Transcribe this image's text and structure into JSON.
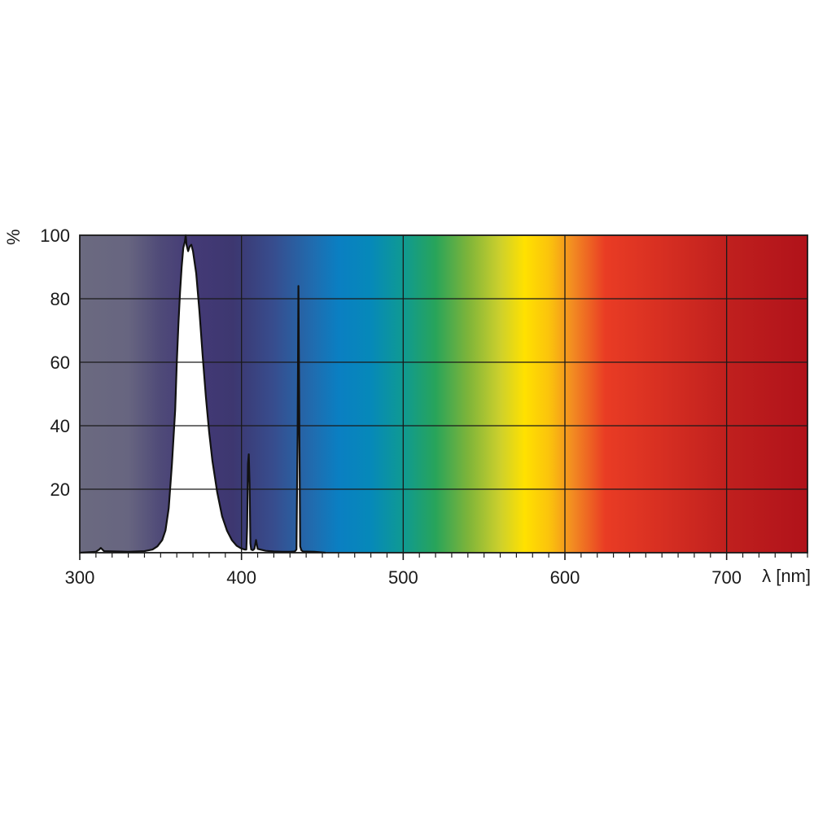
{
  "chart_data": {
    "type": "line",
    "title": "",
    "xlabel": "λ [nm]",
    "ylabel": "%",
    "xlim": [
      300,
      750
    ],
    "ylim": [
      0,
      100
    ],
    "grid": true,
    "x_ticks": [
      300,
      400,
      500,
      600,
      700
    ],
    "x_tick_labels": [
      "300",
      "400",
      "500",
      "600",
      "700"
    ],
    "y_ticks": [
      20,
      40,
      60,
      80,
      100
    ],
    "y_tick_labels": [
      "20",
      "40",
      "60",
      "80",
      "100"
    ],
    "x_minor_step": 10,
    "background_spectrum": [
      {
        "nm": 300,
        "color": "#6b6a80"
      },
      {
        "nm": 330,
        "color": "#676580"
      },
      {
        "nm": 350,
        "color": "#4f4a78"
      },
      {
        "nm": 370,
        "color": "#443a76"
      },
      {
        "nm": 395,
        "color": "#3d3770"
      },
      {
        "nm": 420,
        "color": "#374d8e"
      },
      {
        "nm": 445,
        "color": "#1f6db0"
      },
      {
        "nm": 460,
        "color": "#0a7fc2"
      },
      {
        "nm": 480,
        "color": "#0689b9"
      },
      {
        "nm": 500,
        "color": "#0f9a92"
      },
      {
        "nm": 520,
        "color": "#28a45a"
      },
      {
        "nm": 540,
        "color": "#7db43a"
      },
      {
        "nm": 560,
        "color": "#cdd02c"
      },
      {
        "nm": 575,
        "color": "#ffe100"
      },
      {
        "nm": 590,
        "color": "#fbc40c"
      },
      {
        "nm": 605,
        "color": "#f28a22"
      },
      {
        "nm": 625,
        "color": "#e93c24"
      },
      {
        "nm": 660,
        "color": "#d72f22"
      },
      {
        "nm": 700,
        "color": "#c0201e"
      },
      {
        "nm": 750,
        "color": "#b0121a"
      }
    ],
    "series": [
      {
        "x": [
          300,
          310,
          312,
          313,
          315,
          330,
          340,
          345,
          348,
          351,
          353,
          355,
          357,
          359,
          360,
          361,
          362,
          363,
          364,
          365,
          365.5,
          366,
          367,
          368,
          369,
          370,
          372,
          374,
          376,
          378,
          380,
          382,
          385,
          388,
          391,
          394,
          397,
          400,
          402,
          403,
          403.5,
          404,
          404.5,
          405,
          405.5,
          406,
          407,
          408,
          409,
          410,
          415,
          420,
          425,
          430,
          433,
          434,
          434.7,
          435.2,
          435.8,
          436.3,
          437,
          438,
          445,
          452
        ],
        "y": [
          0,
          0.3,
          1.0,
          1.5,
          0.5,
          0.3,
          0.5,
          1.0,
          2.0,
          4.0,
          7.0,
          14.0,
          28.0,
          45.0,
          60.0,
          72.0,
          82.0,
          90.0,
          96.0,
          98.0,
          100.0,
          97.0,
          95.0,
          96.5,
          97.0,
          95.0,
          88.0,
          76.0,
          62.0,
          49.0,
          38.0,
          29.0,
          19.0,
          11.5,
          7.0,
          4.0,
          2.2,
          1.3,
          1.0,
          1.0,
          8.0,
          28.0,
          31.0,
          22.0,
          3.0,
          1.0,
          0.8,
          1.2,
          4.0,
          1.2,
          0.6,
          0.4,
          0.3,
          0.3,
          0.4,
          1.0,
          37.0,
          84.0,
          38.0,
          2.0,
          0.8,
          0.4,
          0.3,
          0
        ]
      }
    ]
  }
}
